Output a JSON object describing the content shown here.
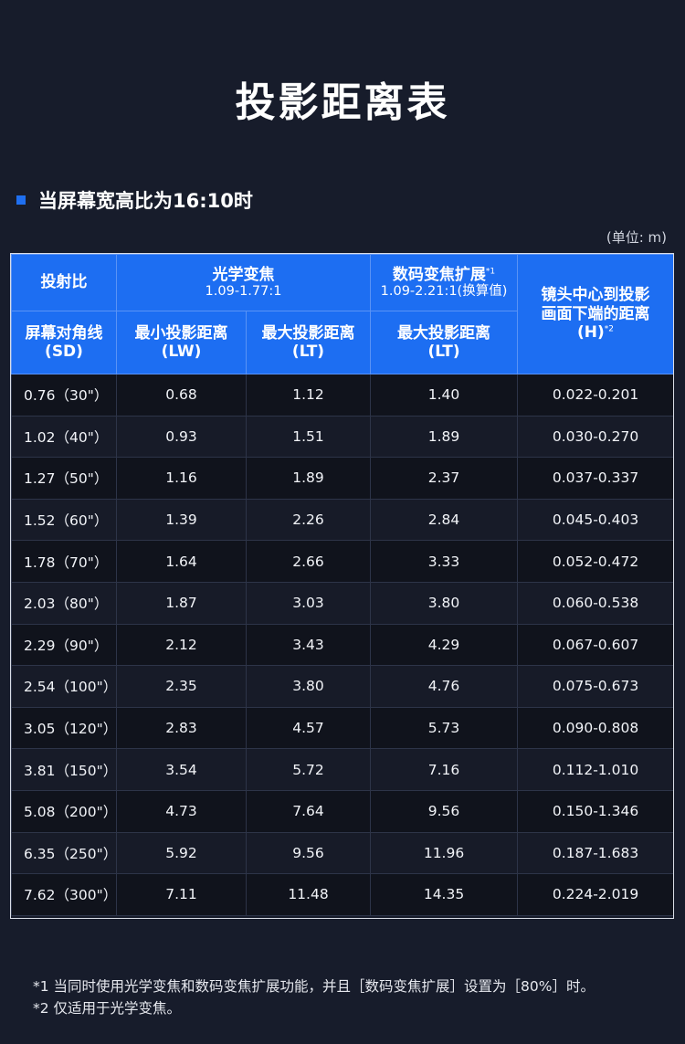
{
  "page_title": "投影距离表",
  "section_heading": "当屏幕宽高比为16:10时",
  "unit_note": "(单位: m)",
  "header": {
    "throw_ratio": "投射比",
    "optical_zoom": "光学变焦",
    "optical_range": "1.09-1.77:1",
    "digital_zoom": "数码变焦扩展",
    "digital_sup": "*1",
    "digital_range": "1.09-2.21:1(换算值)",
    "lens_height_line1": "镜头中心到投影",
    "lens_height_line2": "画面下端的距离",
    "lens_height_line3": "(H)",
    "lens_height_sup": "*2",
    "diag_line1": "屏幕对角线",
    "diag_line2": "(SD)",
    "min_dist_line1": "最小投影距离",
    "min_dist_line2": "(LW)",
    "max_dist_line1": "最大投影距离",
    "max_dist_line2": "(LT)",
    "dmax_dist_line1": "最大投影距离",
    "dmax_dist_line2": "(LT)"
  },
  "rows": [
    {
      "sd": "0.76（30\"）",
      "lw": "0.68",
      "lt": "1.12",
      "dlt": "1.40",
      "h": "0.022-0.201"
    },
    {
      "sd": "1.02（40\"）",
      "lw": "0.93",
      "lt": "1.51",
      "dlt": "1.89",
      "h": "0.030-0.270"
    },
    {
      "sd": "1.27（50\"）",
      "lw": "1.16",
      "lt": "1.89",
      "dlt": "2.37",
      "h": "0.037-0.337"
    },
    {
      "sd": "1.52（60\"）",
      "lw": "1.39",
      "lt": "2.26",
      "dlt": "2.84",
      "h": "0.045-0.403"
    },
    {
      "sd": "1.78（70\"）",
      "lw": "1.64",
      "lt": "2.66",
      "dlt": "3.33",
      "h": "0.052-0.472"
    },
    {
      "sd": "2.03（80\"）",
      "lw": "1.87",
      "lt": "3.03",
      "dlt": "3.80",
      "h": "0.060-0.538"
    },
    {
      "sd": "2.29（90\"）",
      "lw": "2.12",
      "lt": "3.43",
      "dlt": "4.29",
      "h": "0.067-0.607"
    },
    {
      "sd": "2.54（100\"）",
      "lw": "2.35",
      "lt": "3.80",
      "dlt": "4.76",
      "h": "0.075-0.673"
    },
    {
      "sd": "3.05（120\"）",
      "lw": "2.83",
      "lt": "4.57",
      "dlt": "5.73",
      "h": "0.090-0.808"
    },
    {
      "sd": "3.81（150\"）",
      "lw": "3.54",
      "lt": "5.72",
      "dlt": "7.16",
      "h": "0.112-1.010"
    },
    {
      "sd": "5.08（200\"）",
      "lw": "4.73",
      "lt": "7.64",
      "dlt": "9.56",
      "h": "0.150-1.346"
    },
    {
      "sd": "6.35（250\"）",
      "lw": "5.92",
      "lt": "9.56",
      "dlt": "11.96",
      "h": "0.187-1.683"
    },
    {
      "sd": "7.62（300\"）",
      "lw": "7.11",
      "lt": "11.48",
      "dlt": "14.35",
      "h": "0.224-2.019"
    }
  ],
  "footnotes": [
    "*1 当同时使用光学变焦和数码变焦扩展功能，并且［数码变焦扩展］设置为［80%］时。",
    "*2 仅适用于光学变焦。"
  ],
  "colors": {
    "background": "#171c2b",
    "header_blue": "#1d6ef2",
    "accent_square": "#1f6ff0"
  }
}
